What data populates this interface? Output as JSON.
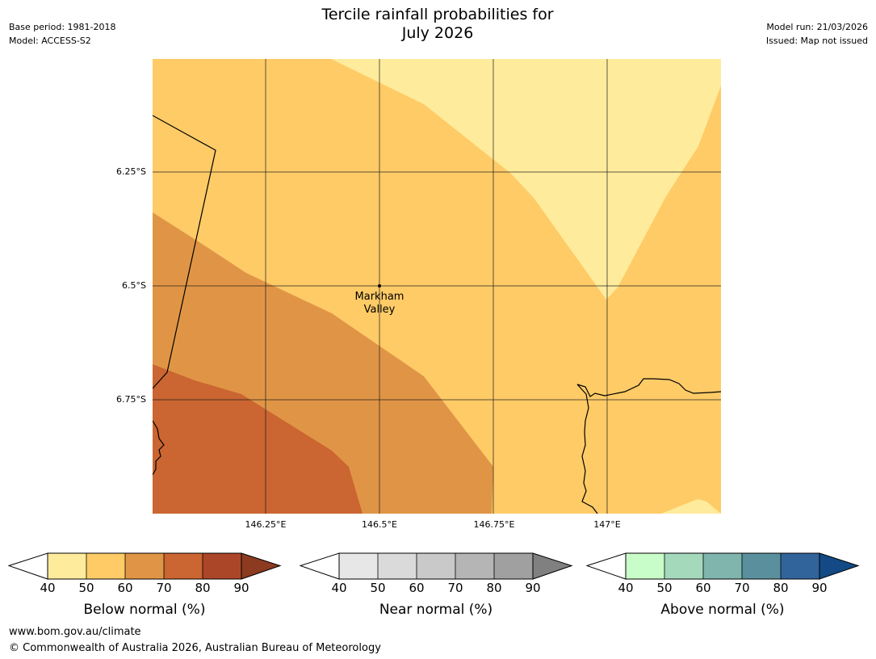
{
  "header": {
    "title_line1": "Tercile rainfall probabilities for",
    "title_line2": "July 2026",
    "base_period": "Base period: 1981-2018",
    "model": "Model: ACCESS-S2",
    "model_run": "Model run: 21/03/2026",
    "issued": "Issued: Map not issued"
  },
  "map": {
    "lat_labels": [
      "6.25°S",
      "6.5°S",
      "6.75°S"
    ],
    "lon_labels": [
      "146.25°E",
      "146.5°E",
      "146.75°E",
      "147°E"
    ],
    "place_name_line1": "Markham",
    "place_name_line2": "Valley",
    "probability_zones": [
      {
        "category": "Below normal",
        "range": "40-50",
        "color": "#ffeb9c"
      },
      {
        "category": "Below normal",
        "range": "50-60",
        "color": "#fecb67"
      },
      {
        "category": "Below normal",
        "range": "60-70",
        "color": "#e09546"
      },
      {
        "category": "Below normal",
        "range": "70-80",
        "color": "#cb6531"
      }
    ]
  },
  "legends": [
    {
      "title": "Below normal (%)",
      "ticks": [
        "40",
        "50",
        "60",
        "70",
        "80",
        "90"
      ],
      "colors": [
        "#ffeb9c",
        "#fecb67",
        "#e09546",
        "#cb6531",
        "#ac4628",
        "#8c3a20"
      ]
    },
    {
      "title": "Near normal (%)",
      "ticks": [
        "40",
        "50",
        "60",
        "70",
        "80",
        "90"
      ],
      "colors": [
        "#e7e7e7",
        "#dadada",
        "#c9c9c9",
        "#b5b5b5",
        "#a0a0a0",
        "#808080"
      ]
    },
    {
      "title": "Above normal (%)",
      "ticks": [
        "40",
        "50",
        "60",
        "70",
        "80",
        "90"
      ],
      "colors": [
        "#c8fcc8",
        "#a5d9bb",
        "#80b5ad",
        "#5a909d",
        "#31649b",
        "#134a85"
      ]
    }
  ],
  "footer": {
    "url": "www.bom.gov.au/climate",
    "copyright": "© Commonwealth of Australia 2026, Australian Bureau of Meteorology"
  }
}
